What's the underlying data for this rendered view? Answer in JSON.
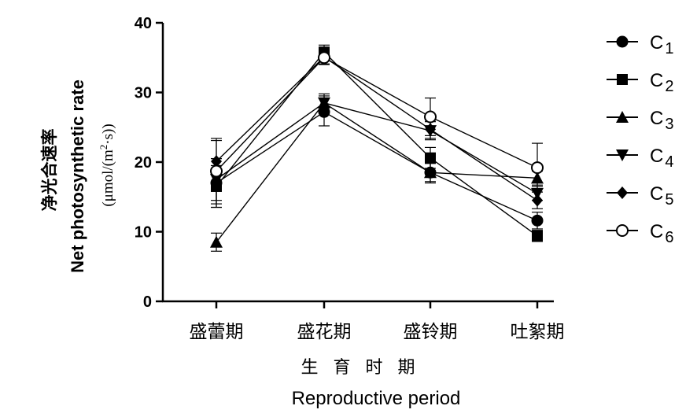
{
  "chart_data": {
    "type": "line",
    "categories": [
      "盛蕾期",
      "盛花期",
      "盛铃期",
      "吐絮期"
    ],
    "xlabel_cn": "生 育 时 期",
    "xlabel": "Reproductive period",
    "ylabel_cn": "净光合速率",
    "ylabel": "Net photosynthetic rate",
    "ylabel_unit_prefix": "(μmol/(m",
    "ylabel_unit_sup": "2",
    "ylabel_unit_suffix": "·s))",
    "ylim": [
      0,
      40
    ],
    "yticks": [
      0,
      10,
      20,
      30,
      40
    ],
    "grid": false,
    "legend_position": "right",
    "series": [
      {
        "name": "C",
        "subscript": "1",
        "marker": "circle-filled",
        "values": [
          17.0,
          27.2,
          18.5,
          11.6
        ],
        "errors": [
          3.5,
          2.0,
          1.5,
          1.2
        ]
      },
      {
        "name": "C",
        "subscript": "2",
        "marker": "square-filled",
        "values": [
          16.5,
          35.8,
          20.6,
          9.4
        ],
        "errors": [
          3.0,
          1.0,
          1.5,
          0.8
        ]
      },
      {
        "name": "C",
        "subscript": "3",
        "marker": "triangle-up-filled",
        "values": [
          8.5,
          28.5,
          18.5,
          17.7
        ],
        "errors": [
          1.3,
          1.3,
          1.3,
          1.0
        ]
      },
      {
        "name": "C",
        "subscript": "4",
        "marker": "triangle-down-filled",
        "values": [
          17.5,
          28.5,
          24.5,
          15.5
        ],
        "errors": [
          3.0,
          1.0,
          1.3,
          1.0
        ]
      },
      {
        "name": "C",
        "subscript": "5",
        "marker": "diamond-filled",
        "values": [
          20.1,
          35.1,
          24.7,
          14.5
        ],
        "errors": [
          3.0,
          1.0,
          1.3,
          1.2
        ]
      },
      {
        "name": "C",
        "subscript": "6",
        "marker": "circle-open",
        "values": [
          18.7,
          35.0,
          26.5,
          19.2
        ],
        "errors": [
          4.7,
          1.0,
          2.7,
          3.5
        ]
      }
    ]
  }
}
